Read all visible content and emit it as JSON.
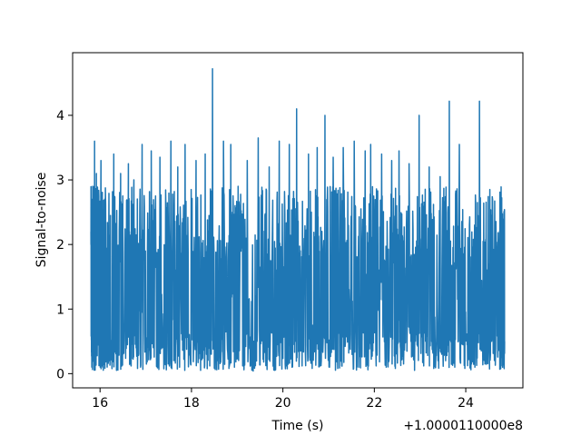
{
  "chart_data": {
    "type": "line",
    "title": "",
    "xlabel": "Time (s)",
    "ylabel": "Signal-to-noise",
    "x_offset_text": "+1.0000110000e8",
    "xlim": [
      15.4,
      25.25
    ],
    "ylim": [
      -0.22,
      4.97
    ],
    "xticks": [
      16,
      18,
      20,
      22,
      24
    ],
    "yticks": [
      0,
      1,
      2,
      3,
      4
    ],
    "x_tick_labels": [
      "16",
      "18",
      "20",
      "22",
      "24"
    ],
    "y_tick_labels": [
      "0",
      "1",
      "2",
      "3",
      "4"
    ],
    "grid": false,
    "legend": "none",
    "x_range": [
      15.8,
      24.85
    ],
    "series": [
      {
        "color": "#1f77b4",
        "x": [
          15.8,
          15.82,
          15.84,
          15.86,
          15.88,
          15.9,
          15.92,
          15.96,
          16.02,
          16.06,
          16.1,
          16.2,
          16.3,
          16.36,
          16.45,
          16.5,
          16.62,
          16.68,
          16.74,
          16.82,
          16.92,
          17.02,
          17.12,
          17.25,
          17.31,
          17.45,
          17.55,
          17.62,
          17.7,
          17.74,
          17.86,
          17.98,
          18.1,
          18.2,
          18.3,
          18.4,
          18.46,
          18.58,
          18.7,
          18.82,
          18.86,
          18.94,
          19.02,
          19.12,
          19.22,
          19.35,
          19.46,
          19.58,
          19.7,
          19.84,
          19.92,
          20.05,
          20.14,
          20.2,
          20.3,
          20.42,
          20.56,
          20.64,
          20.75,
          20.8,
          20.92,
          21.02,
          21.1,
          21.2,
          21.32,
          21.44,
          21.56,
          21.66,
          21.8,
          21.86,
          21.92,
          22.04,
          22.16,
          22.26,
          22.38,
          22.46,
          22.54,
          22.64,
          22.76,
          22.88,
          22.98,
          23.08,
          23.2,
          23.3,
          23.44,
          23.56,
          23.64,
          23.76,
          23.86,
          23.98,
          24.08,
          24.2,
          24.3,
          24.42,
          24.5,
          24.62,
          24.74,
          24.78,
          24.82,
          24.85
        ],
        "y": [
          2.2,
          0.1,
          2.9,
          0.3,
          3.6,
          0.15,
          3.1,
          0.5,
          3.3,
          0.1,
          2.7,
          0.2,
          3.4,
          0.05,
          3.1,
          0.3,
          3.25,
          0.12,
          3.0,
          0.08,
          3.55,
          0.2,
          3.45,
          0.1,
          3.35,
          0.06,
          3.6,
          0.2,
          3.2,
          0.1,
          3.55,
          0.15,
          3.3,
          0.05,
          3.4,
          0.12,
          4.72,
          0.2,
          3.6,
          0.08,
          3.55,
          0.1,
          2.9,
          0.12,
          3.3,
          0.04,
          3.65,
          0.18,
          3.2,
          0.06,
          3.6,
          0.15,
          3.55,
          0.1,
          4.1,
          0.12,
          3.4,
          0.08,
          3.5,
          0.2,
          4.0,
          0.1,
          3.35,
          0.08,
          3.5,
          0.32,
          3.6,
          0.1,
          3.45,
          0.06,
          3.55,
          0.12,
          3.4,
          0.1,
          3.3,
          0.08,
          3.45,
          0.15,
          3.25,
          0.05,
          4.0,
          0.12,
          3.2,
          0.08,
          3.05,
          0.2,
          4.22,
          0.1,
          3.55,
          0.08,
          2.3,
          0.1,
          4.22,
          0.15,
          1.7,
          0.5,
          2.2,
          0.8,
          1.0,
          0.5
        ]
      }
    ]
  }
}
